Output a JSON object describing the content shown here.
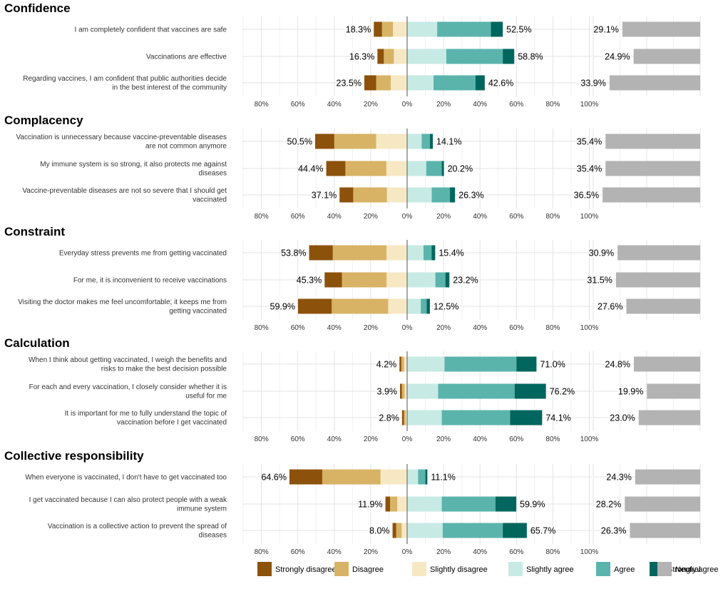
{
  "chart_data": {
    "type": "bar",
    "subtype": "diverging-stacked-likert",
    "x_axis": {
      "ticks": [
        -80,
        -60,
        -40,
        -20,
        0,
        20,
        40,
        60,
        80,
        100
      ],
      "tick_labels": [
        "80%",
        "60%",
        "40%",
        "20%",
        "0%",
        "20%",
        "40%",
        "60%",
        "80%",
        "100%"
      ]
    },
    "neutral_axis_max": 40,
    "legend": [
      {
        "key": "sd",
        "label": "Strongly disagree",
        "color": "#8c510a"
      },
      {
        "key": "d",
        "label": "Disagree",
        "color": "#d8b365"
      },
      {
        "key": "sld",
        "label": "Slightly disagree",
        "color": "#f6e8c3"
      },
      {
        "key": "sla",
        "label": "Slightly agree",
        "color": "#c7eae5"
      },
      {
        "key": "a",
        "label": "Agree",
        "color": "#5ab4ac"
      },
      {
        "key": "sa",
        "label": "Strongly agree",
        "color": "#01665e"
      },
      {
        "key": "n",
        "label": "Neutral",
        "color": "#b3b3b3"
      }
    ],
    "panels": [
      {
        "title": "Confidence",
        "items": [
          {
            "label": [
              "I am completely confident that vaccines are safe"
            ],
            "sd": 4.5,
            "d": 6.0,
            "sld": 7.8,
            "sla": 16.5,
            "a": 29.5,
            "sa": 6.5,
            "neutral": 29.1,
            "disagree_label": "18.3%",
            "agree_label": "52.5%",
            "neutral_label": "29.1%"
          },
          {
            "label": [
              "Vaccinations are effective"
            ],
            "sd": 3.5,
            "d": 5.5,
            "sld": 7.3,
            "sla": 21.5,
            "a": 31.0,
            "sa": 6.3,
            "neutral": 24.9,
            "disagree_label": "16.3%",
            "agree_label": "58.8%",
            "neutral_label": "24.9%"
          },
          {
            "label": [
              "Regarding vaccines, I am confident that public authorities decide",
              "in the best interest of the community"
            ],
            "sd": 6.5,
            "d": 8.0,
            "sld": 9.0,
            "sla": 14.5,
            "a": 23.0,
            "sa": 5.1,
            "neutral": 33.9,
            "disagree_label": "23.5%",
            "agree_label": "42.6%",
            "neutral_label": "33.9%"
          }
        ]
      },
      {
        "title": "Complacency",
        "items": [
          {
            "label": [
              "Vaccination is unnecessary because vaccine-preventable diseases",
              "are not common anymore"
            ],
            "sd": 10.5,
            "d": 23.0,
            "sld": 17.0,
            "sla": 8.0,
            "a": 4.5,
            "sa": 1.6,
            "neutral": 35.4,
            "disagree_label": "50.5%",
            "agree_label": "14.1%",
            "neutral_label": "35.4%"
          },
          {
            "label": [
              "My immune system is so strong, it also protects me against",
              "diseases"
            ],
            "sd": 10.5,
            "d": 22.5,
            "sld": 11.4,
            "sla": 10.5,
            "a": 8.5,
            "sa": 1.2,
            "neutral": 35.4,
            "disagree_label": "44.4%",
            "agree_label": "20.2%",
            "neutral_label": "35.4%"
          },
          {
            "label": [
              "Vaccine-preventable diseases are not so severe that I should get",
              "vaccinated"
            ],
            "sd": 7.5,
            "d": 18.5,
            "sld": 11.1,
            "sla": 13.5,
            "a": 10.0,
            "sa": 2.8,
            "neutral": 36.5,
            "disagree_label": "37.1%",
            "agree_label": "26.3%",
            "neutral_label": "36.5%"
          }
        ]
      },
      {
        "title": "Constraint",
        "items": [
          {
            "label": [
              "Everyday stress prevents me from getting vaccinated"
            ],
            "sd": 13.0,
            "d": 29.5,
            "sld": 11.3,
            "sla": 9.0,
            "a": 4.4,
            "sa": 2.0,
            "neutral": 30.9,
            "disagree_label": "53.8%",
            "agree_label": "15.4%",
            "neutral_label": "30.9%"
          },
          {
            "label": [
              "For me, it is inconvenient to receive vaccinations"
            ],
            "sd": 9.5,
            "d": 24.5,
            "sld": 11.3,
            "sla": 15.5,
            "a": 5.5,
            "sa": 2.2,
            "neutral": 31.5,
            "disagree_label": "45.3%",
            "agree_label": "23.2%",
            "neutral_label": "31.5%"
          },
          {
            "label": [
              "Visiting the doctor makes me feel uncomfortable; it keeps me from",
              "getting vaccinated"
            ],
            "sd": 18.5,
            "d": 31.0,
            "sld": 10.4,
            "sla": 7.5,
            "a": 3.2,
            "sa": 1.8,
            "neutral": 27.6,
            "disagree_label": "59.9%",
            "agree_label": "12.5%",
            "neutral_label": "27.6%"
          }
        ]
      },
      {
        "title": "Calculation",
        "items": [
          {
            "label": [
              "When I think about getting vaccinated, I weigh the benefits and",
              "risks to make the best decision possible"
            ],
            "sd": 1.0,
            "d": 1.5,
            "sld": 1.7,
            "sla": 20.5,
            "a": 39.5,
            "sa": 11.0,
            "neutral": 24.8,
            "disagree_label": "4.2%",
            "agree_label": "71.0%",
            "neutral_label": "24.8%"
          },
          {
            "label": [
              "For each and every vaccination, I closely consider whether it is",
              "useful for me"
            ],
            "sd": 1.0,
            "d": 1.5,
            "sld": 1.4,
            "sla": 17.0,
            "a": 42.0,
            "sa": 17.2,
            "neutral": 19.9,
            "disagree_label": "3.9%",
            "agree_label": "76.2%",
            "neutral_label": "19.9%"
          },
          {
            "label": [
              "It is important for me to fully understand the topic of",
              "vaccination before I get vaccinated"
            ],
            "sd": 1.0,
            "d": 1.0,
            "sld": 0.8,
            "sla": 19.0,
            "a": 37.5,
            "sa": 17.6,
            "neutral": 23.0,
            "disagree_label": "2.8%",
            "agree_label": "74.1%",
            "neutral_label": "23.0%"
          }
        ]
      },
      {
        "title": "Collective responsibility",
        "items": [
          {
            "label": [
              "When everyone is vaccinated, I don't have to get vaccinated too"
            ],
            "sd": 18.0,
            "d": 32.0,
            "sld": 14.6,
            "sla": 6.0,
            "a": 4.0,
            "sa": 1.1,
            "neutral": 24.3,
            "disagree_label": "64.6%",
            "agree_label": "11.1%",
            "neutral_label": "24.3%"
          },
          {
            "label": [
              "I get vaccinated because I can also protect people with a weak",
              "immune system"
            ],
            "sd": 2.5,
            "d": 4.0,
            "sld": 5.4,
            "sla": 19.0,
            "a": 29.5,
            "sa": 11.4,
            "neutral": 28.2,
            "disagree_label": "11.9%",
            "agree_label": "59.9%",
            "neutral_label": "28.2%"
          },
          {
            "label": [
              "Vaccination is a collective action to prevent the spread of",
              "diseases"
            ],
            "sd": 2.0,
            "d": 3.0,
            "sld": 3.0,
            "sla": 19.5,
            "a": 33.0,
            "sa": 13.2,
            "neutral": 26.3,
            "disagree_label": "8.0%",
            "agree_label": "65.7%",
            "neutral_label": "26.3%"
          }
        ]
      }
    ]
  }
}
